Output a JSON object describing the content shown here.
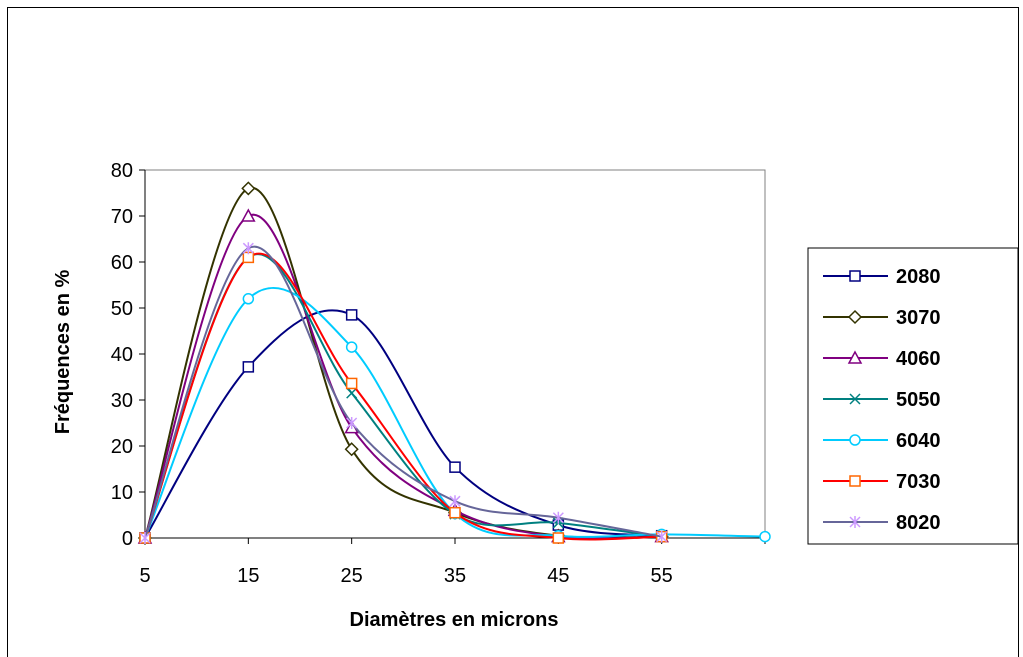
{
  "chart_data": {
    "type": "line",
    "title": "",
    "xlabel": "Diamètres en microns",
    "ylabel": "Fréquences en %",
    "x": [
      5,
      15,
      25,
      35,
      45,
      55,
      65
    ],
    "x_tick_labels": [
      "5",
      "15",
      "25",
      "35",
      "45",
      "55"
    ],
    "y_ticks": [
      0,
      10,
      20,
      30,
      40,
      50,
      60,
      70,
      80
    ],
    "xlim": [
      5,
      65
    ],
    "ylim": [
      0,
      80
    ],
    "grid": false,
    "smooth": true,
    "legend_position": "right",
    "series": [
      {
        "name": "2080",
        "marker": "square",
        "color": "#000080",
        "values": [
          0,
          37.2,
          48.5,
          15.4,
          2.8,
          0.5,
          null
        ]
      },
      {
        "name": "3070",
        "marker": "diamond",
        "color": "#333300",
        "values": [
          0,
          76,
          19.3,
          5.5,
          0.5,
          0.3,
          null
        ]
      },
      {
        "name": "4060",
        "marker": "triangle",
        "color": "#800080",
        "values": [
          0,
          70,
          24,
          6,
          0.3,
          0.3,
          null
        ]
      },
      {
        "name": "5050",
        "marker": "x",
        "color": "#008080",
        "values": [
          0,
          61,
          31.5,
          5.2,
          3.3,
          0.3,
          null
        ]
      },
      {
        "name": "6040",
        "marker": "circle",
        "color": "#00CCFF",
        "values": [
          0,
          52,
          41.5,
          5.3,
          0.5,
          0.8,
          0.3
        ]
      },
      {
        "name": "7030",
        "marker": "square",
        "color": "#FF0000",
        "marker_color": "#FF6600",
        "values": [
          0,
          61,
          33.6,
          5.5,
          0,
          0.3,
          null
        ]
      },
      {
        "name": "8020",
        "marker": "asterisk",
        "color": "#666699",
        "marker_color": "#CC99FF",
        "values": [
          0,
          63,
          25,
          8,
          4.4,
          0.3,
          null
        ]
      }
    ]
  }
}
